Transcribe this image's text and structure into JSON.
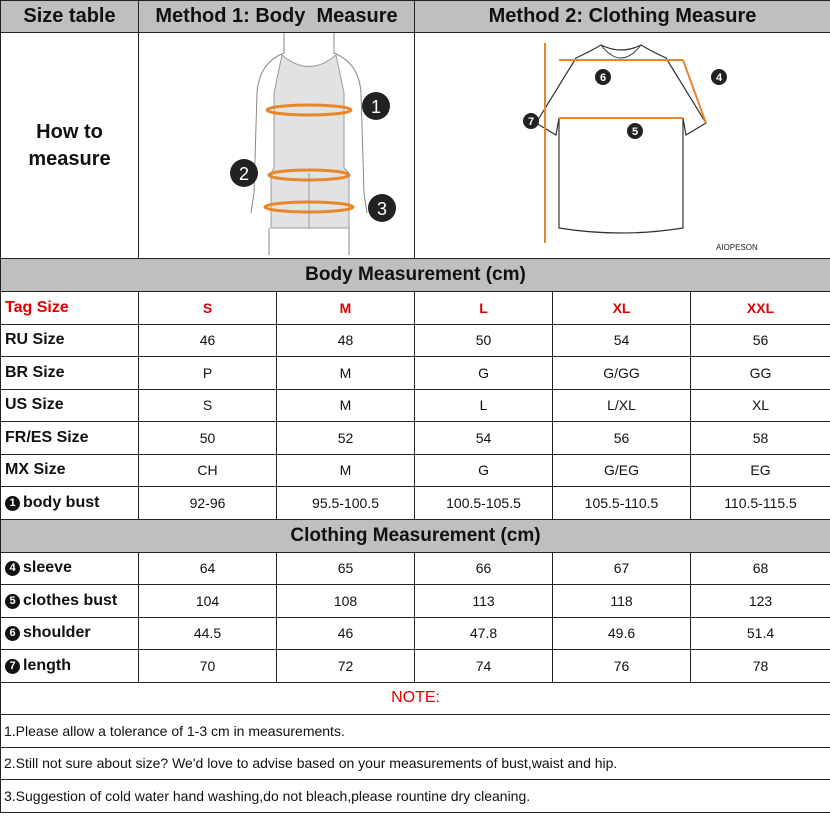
{
  "header": {
    "col1": "Size table",
    "col2": "Method 1: Body  Measure",
    "col3": "Method 2: Clothing Measure"
  },
  "how_to_measure": "How to measure",
  "body_figure": {
    "markers": [
      "1",
      "2",
      "3"
    ]
  },
  "shirt_figure": {
    "markers": [
      "4",
      "5",
      "6",
      "7"
    ],
    "brand": "AIOPESON"
  },
  "accent_color": "#e8862a",
  "body_section": {
    "title": "Body Measurement (cm)",
    "tag_row": {
      "label": "Tag Size",
      "values": [
        "S",
        "M",
        "L",
        "XL",
        "XXL"
      ]
    },
    "rows": [
      {
        "label": "RU Size",
        "values": [
          "46",
          "48",
          "50",
          "54",
          "56"
        ]
      },
      {
        "label": "BR Size",
        "values": [
          "P",
          "M",
          "G",
          "G/GG",
          "GG"
        ]
      },
      {
        "label": "US Size",
        "values": [
          "S",
          "M",
          "L",
          "L/XL",
          "XL"
        ]
      },
      {
        "label": "FR/ES Size",
        "values": [
          "50",
          "52",
          "54",
          "56",
          "58"
        ]
      },
      {
        "label": "MX Size",
        "values": [
          "CH",
          "M",
          "G",
          "G/EG",
          "EG"
        ]
      },
      {
        "num": "1",
        "label": "body bust",
        "values": [
          "92-96",
          "95.5-100.5",
          "100.5-105.5",
          "105.5-110.5",
          "110.5-115.5"
        ]
      }
    ]
  },
  "clothing_section": {
    "title": "Clothing Measurement (cm)",
    "rows": [
      {
        "num": "4",
        "label": "sleeve",
        "values": [
          "64",
          "65",
          "66",
          "67",
          "68"
        ]
      },
      {
        "num": "5",
        "label": "clothes bust",
        "values": [
          "104",
          "108",
          "113",
          "118",
          "123"
        ]
      },
      {
        "num": "6",
        "label": "shoulder",
        "values": [
          "44.5",
          "46",
          "47.8",
          "49.6",
          "51.4"
        ]
      },
      {
        "num": "7",
        "label": "length",
        "values": [
          "70",
          "72",
          "74",
          "76",
          "78"
        ]
      }
    ]
  },
  "notes": {
    "title": "NOTE:",
    "items": [
      "1.Please allow a tolerance of 1-3 cm in measurements.",
      "2.Still not sure about size? We'd love to advise based on your measurements of bust,waist and hip.",
      "3.Suggestion of cold water hand washing,do not bleach,please rountine dry cleaning."
    ]
  }
}
